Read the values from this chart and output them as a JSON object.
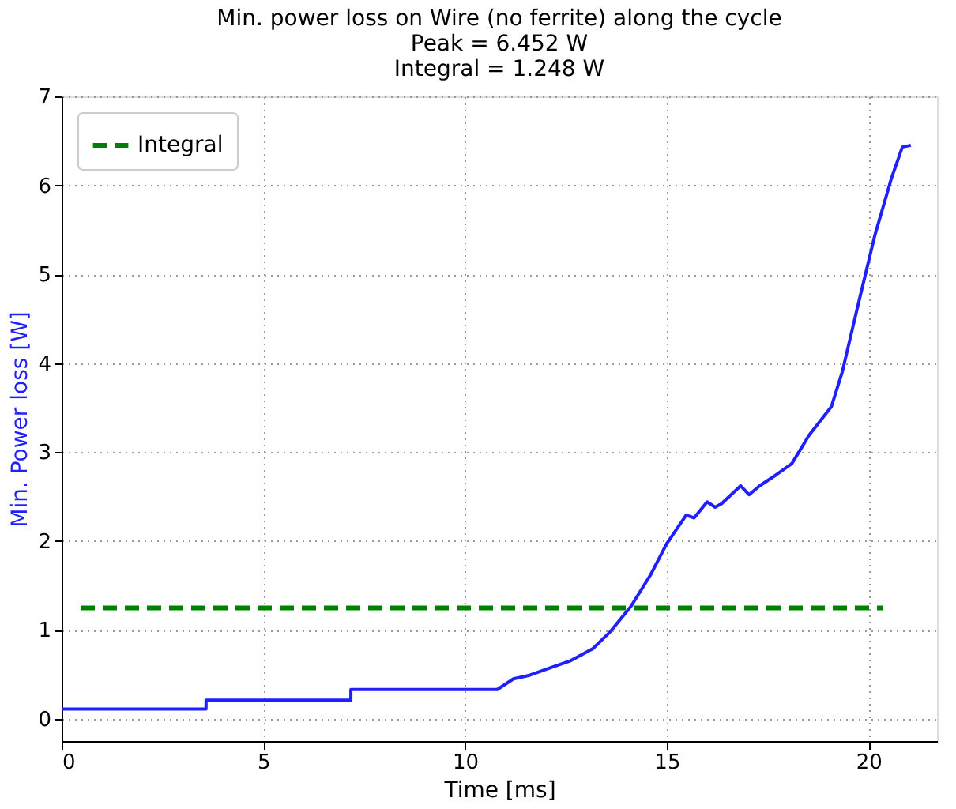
{
  "chart_data": {
    "type": "line",
    "title": "Min. power loss on Wire (no ferrite) along the cycle\nPeak = 6.452 W\nIntegral = 1.248 W",
    "xlabel": "Time [ms]",
    "ylabel": "Min. Power loss [W]",
    "series": [
      {
        "color": "#1f1fff",
        "x": [
          0,
          3.58,
          3.58,
          7.17,
          7.17,
          10.8,
          11.2,
          11.6,
          12.15,
          12.6,
          13.17,
          13.6,
          14.12,
          14.6,
          15.0,
          15.48,
          15.68,
          16.0,
          16.2,
          16.36,
          16.83,
          17.04,
          17.3,
          17.7,
          18.1,
          18.53,
          19.08,
          19.35,
          19.75,
          20.16,
          20.57,
          20.84,
          21.05
        ],
        "values": [
          0.11,
          0.11,
          0.21,
          0.21,
          0.33,
          0.33,
          0.45,
          0.49,
          0.58,
          0.65,
          0.79,
          0.98,
          1.27,
          1.62,
          1.97,
          2.29,
          2.26,
          2.44,
          2.38,
          2.42,
          2.62,
          2.52,
          2.62,
          2.74,
          2.87,
          3.19,
          3.51,
          3.9,
          4.67,
          5.44,
          6.08,
          6.43,
          6.45
        ]
      }
    ],
    "ref_lines": [
      {
        "axis": "y",
        "value": 1.248,
        "label": "Integral",
        "color": "#008000",
        "line_style": "dashed"
      }
    ],
    "xlim": [
      0,
      21.7
    ],
    "xticks": [
      0,
      5,
      10,
      15,
      20
    ],
    "ylim": [
      -0.25,
      7
    ],
    "yticks": [
      0,
      1,
      2,
      3,
      4,
      5,
      6,
      7
    ],
    "grid": true,
    "legend": "top left",
    "line_style": "solid",
    "marker": "none"
  }
}
